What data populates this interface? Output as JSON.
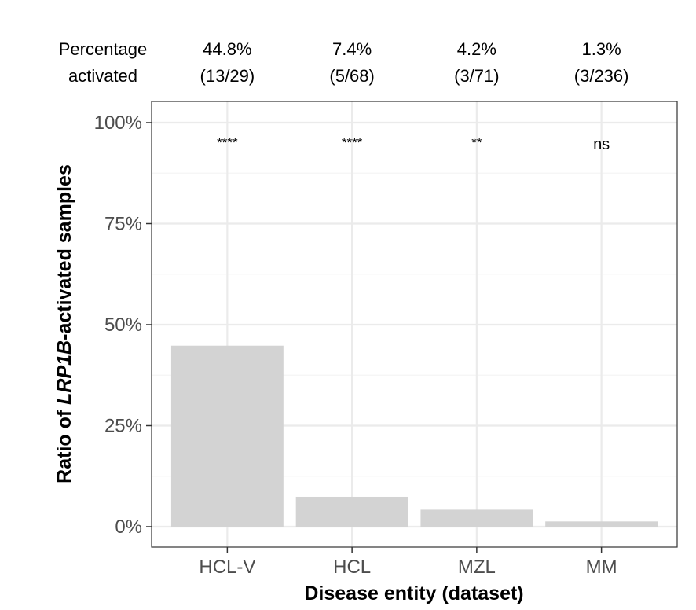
{
  "chart_data": {
    "type": "bar",
    "categories": [
      "HCL-V",
      "HCL",
      "MZL",
      "MM"
    ],
    "values": [
      44.8,
      7.4,
      4.2,
      1.3
    ],
    "value_unit": "%",
    "ylim": [
      0,
      100
    ],
    "yticks": [
      0,
      25,
      50,
      75,
      100
    ],
    "ytick_labels": [
      "0%",
      "25%",
      "50%",
      "75%",
      "100%"
    ],
    "ylabel": {
      "prefix": "Ratio of ",
      "gene": "LRP1B",
      "suffix": "-activated samples"
    },
    "xlabel": "Disease entity (dataset)",
    "header": {
      "row_label_line1": "Percentage",
      "row_label_line2": "activated",
      "percentages": [
        "44.8%",
        "7.4%",
        "4.2%",
        "1.3%"
      ],
      "counts": [
        "(13/29)",
        "(5/68)",
        "(3/71)",
        "(3/236)"
      ]
    },
    "significance": [
      "****",
      "****",
      "**",
      "ns"
    ],
    "grid": true,
    "legend": "none",
    "colors": {
      "bar": "#d3d3d3",
      "grid_major": "#ebebeb",
      "grid_minor": "#f4f4f4",
      "panel_border": "#333333",
      "tick_text": "#4d4d4d",
      "text": "#000000"
    }
  }
}
